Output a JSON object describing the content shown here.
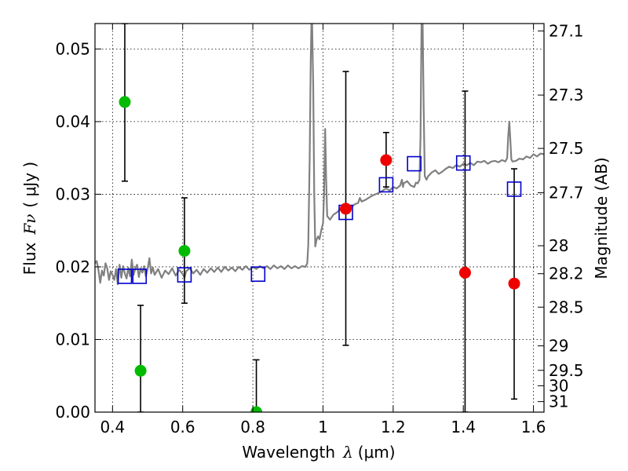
{
  "chart_data": {
    "type": "scatter",
    "title": "",
    "xlabel": "Wavelength  λ (μm)",
    "xlabel_prefix": "Wavelength",
    "xlabel_symbol": "λ",
    "xlabel_unit": "(μm)",
    "ylabel": "Flux  Fν ( μJy )",
    "ylabel_prefix": "Flux",
    "ylabel_symbol": "Fν",
    "ylabel_unit": "( μJy )",
    "ylabel_right": "Magnitude (AB)",
    "xlim": [
      0.35,
      1.63
    ],
    "ylim": [
      0.0,
      0.0535
    ],
    "grid": true,
    "x_ticks": [
      0.4,
      0.6,
      0.8,
      1.0,
      1.2,
      1.4,
      1.6
    ],
    "x_tick_labels": [
      "0.4",
      "0.6",
      "0.8",
      "1",
      "1.2",
      "1.4",
      "1.6"
    ],
    "y_ticks": [
      0.0,
      0.01,
      0.02,
      0.03,
      0.04,
      0.05
    ],
    "y_tick_labels": [
      "0.00",
      "0.01",
      "0.02",
      "0.03",
      "0.04",
      "0.05"
    ],
    "mag_ticks": [
      {
        "label": "27.1",
        "mag": 27.1
      },
      {
        "label": "27.3",
        "mag": 27.3
      },
      {
        "label": "27.5",
        "mag": 27.5
      },
      {
        "label": "27.7",
        "mag": 27.7
      },
      {
        "label": "28",
        "mag": 28.0
      },
      {
        "label": "28.2",
        "mag": 28.2
      },
      {
        "label": "28.5",
        "mag": 28.5
      },
      {
        "label": "29",
        "mag": 29.0
      },
      {
        "label": "29.5",
        "mag": 29.5
      },
      {
        "label": "30",
        "mag": 30.0
      },
      {
        "label": "31",
        "mag": 31.0
      }
    ],
    "series": [
      {
        "name": "model spectrum",
        "kind": "line",
        "color": "#808080",
        "points": [
          [
            0.35,
            0.0205
          ],
          [
            0.355,
            0.0208
          ],
          [
            0.36,
            0.0195
          ],
          [
            0.365,
            0.0178
          ],
          [
            0.37,
            0.0195
          ],
          [
            0.375,
            0.0188
          ],
          [
            0.38,
            0.0205
          ],
          [
            0.385,
            0.0198
          ],
          [
            0.39,
            0.0182
          ],
          [
            0.395,
            0.0194
          ],
          [
            0.4,
            0.0189
          ],
          [
            0.405,
            0.0182
          ],
          [
            0.41,
            0.0197
          ],
          [
            0.415,
            0.0176
          ],
          [
            0.42,
            0.0203
          ],
          [
            0.425,
            0.0185
          ],
          [
            0.43,
            0.0201
          ],
          [
            0.435,
            0.0191
          ],
          [
            0.44,
            0.0184
          ],
          [
            0.445,
            0.0199
          ],
          [
            0.45,
            0.0187
          ],
          [
            0.455,
            0.021
          ],
          [
            0.46,
            0.0189
          ],
          [
            0.465,
            0.0198
          ],
          [
            0.47,
            0.0203
          ],
          [
            0.475,
            0.0186
          ],
          [
            0.48,
            0.0198
          ],
          [
            0.485,
            0.0192
          ],
          [
            0.49,
            0.0201
          ],
          [
            0.495,
            0.0187
          ],
          [
            0.5,
            0.0197
          ],
          [
            0.505,
            0.0212
          ],
          [
            0.51,
            0.0191
          ],
          [
            0.515,
            0.0199
          ],
          [
            0.52,
            0.0189
          ],
          [
            0.53,
            0.0197
          ],
          [
            0.54,
            0.0185
          ],
          [
            0.55,
            0.0195
          ],
          [
            0.56,
            0.019
          ],
          [
            0.57,
            0.0198
          ],
          [
            0.58,
            0.0188
          ],
          [
            0.59,
            0.0196
          ],
          [
            0.6,
            0.019
          ],
          [
            0.605,
            0.0185
          ],
          [
            0.61,
            0.0194
          ],
          [
            0.62,
            0.0198
          ],
          [
            0.63,
            0.0191
          ],
          [
            0.64,
            0.0196
          ],
          [
            0.65,
            0.0189
          ],
          [
            0.66,
            0.0197
          ],
          [
            0.67,
            0.0192
          ],
          [
            0.68,
            0.0198
          ],
          [
            0.69,
            0.0193
          ],
          [
            0.7,
            0.0199
          ],
          [
            0.71,
            0.0193
          ],
          [
            0.72,
            0.02
          ],
          [
            0.73,
            0.0195
          ],
          [
            0.74,
            0.0199
          ],
          [
            0.75,
            0.0194
          ],
          [
            0.76,
            0.02
          ],
          [
            0.77,
            0.0196
          ],
          [
            0.78,
            0.0201
          ],
          [
            0.79,
            0.0196
          ],
          [
            0.8,
            0.02
          ],
          [
            0.81,
            0.0197
          ],
          [
            0.82,
            0.0201
          ],
          [
            0.83,
            0.0198
          ],
          [
            0.84,
            0.0201
          ],
          [
            0.85,
            0.0197
          ],
          [
            0.86,
            0.0202
          ],
          [
            0.87,
            0.0198
          ],
          [
            0.88,
            0.0201
          ],
          [
            0.89,
            0.0197
          ],
          [
            0.9,
            0.0202
          ],
          [
            0.91,
            0.0198
          ],
          [
            0.92,
            0.0201
          ],
          [
            0.93,
            0.0198
          ],
          [
            0.94,
            0.0201
          ],
          [
            0.95,
            0.02
          ],
          [
            0.955,
            0.0205
          ],
          [
            0.958,
            0.023
          ],
          [
            0.962,
            0.035
          ],
          [
            0.965,
            0.048
          ],
          [
            0.967,
            0.0535
          ],
          [
            0.969,
            0.0535
          ],
          [
            0.972,
            0.045
          ],
          [
            0.975,
            0.03
          ],
          [
            0.978,
            0.0228
          ],
          [
            0.982,
            0.0238
          ],
          [
            0.986,
            0.0242
          ],
          [
            0.99,
            0.0238
          ],
          [
            0.995,
            0.025
          ],
          [
            1.0,
            0.026
          ],
          [
            1.003,
            0.03
          ],
          [
            1.006,
            0.039
          ],
          [
            1.009,
            0.032
          ],
          [
            1.012,
            0.027
          ],
          [
            1.02,
            0.0265
          ],
          [
            1.03,
            0.0272
          ],
          [
            1.04,
            0.0275
          ],
          [
            1.05,
            0.028
          ],
          [
            1.055,
            0.0285
          ],
          [
            1.06,
            0.0278
          ],
          [
            1.065,
            0.028
          ],
          [
            1.07,
            0.0276
          ],
          [
            1.08,
            0.0282
          ],
          [
            1.09,
            0.0286
          ],
          [
            1.1,
            0.0288
          ],
          [
            1.105,
            0.0295
          ],
          [
            1.11,
            0.029
          ],
          [
            1.12,
            0.0292
          ],
          [
            1.13,
            0.0295
          ],
          [
            1.14,
            0.0298
          ],
          [
            1.15,
            0.03
          ],
          [
            1.16,
            0.0302
          ],
          [
            1.17,
            0.0305
          ],
          [
            1.18,
            0.0308
          ],
          [
            1.19,
            0.0305
          ],
          [
            1.2,
            0.031
          ],
          [
            1.21,
            0.0308
          ],
          [
            1.22,
            0.0312
          ],
          [
            1.225,
            0.032
          ],
          [
            1.228,
            0.031
          ],
          [
            1.23,
            0.0315
          ],
          [
            1.24,
            0.0318
          ],
          [
            1.25,
            0.0312
          ],
          [
            1.26,
            0.031
          ],
          [
            1.265,
            0.0316
          ],
          [
            1.27,
            0.0315
          ],
          [
            1.275,
            0.032
          ],
          [
            1.278,
            0.038
          ],
          [
            1.281,
            0.0535
          ],
          [
            1.284,
            0.0535
          ],
          [
            1.287,
            0.042
          ],
          [
            1.29,
            0.0325
          ],
          [
            1.295,
            0.032
          ],
          [
            1.3,
            0.0325
          ],
          [
            1.31,
            0.033
          ],
          [
            1.32,
            0.0333
          ],
          [
            1.33,
            0.0328
          ],
          [
            1.34,
            0.0331
          ],
          [
            1.35,
            0.0335
          ],
          [
            1.36,
            0.0338
          ],
          [
            1.37,
            0.0336
          ],
          [
            1.38,
            0.034
          ],
          [
            1.39,
            0.0338
          ],
          [
            1.4,
            0.0342
          ],
          [
            1.41,
            0.034
          ],
          [
            1.42,
            0.0343
          ],
          [
            1.43,
            0.034
          ],
          [
            1.44,
            0.0345
          ],
          [
            1.45,
            0.0344
          ],
          [
            1.46,
            0.0346
          ],
          [
            1.47,
            0.0342
          ],
          [
            1.48,
            0.0345
          ],
          [
            1.49,
            0.0346
          ],
          [
            1.5,
            0.0344
          ],
          [
            1.51,
            0.0347
          ],
          [
            1.52,
            0.0345
          ],
          [
            1.525,
            0.035
          ],
          [
            1.528,
            0.038
          ],
          [
            1.531,
            0.04
          ],
          [
            1.534,
            0.0375
          ],
          [
            1.537,
            0.0348
          ],
          [
            1.54,
            0.0345
          ],
          [
            1.55,
            0.0346
          ],
          [
            1.56,
            0.0349
          ],
          [
            1.57,
            0.0348
          ],
          [
            1.58,
            0.0352
          ],
          [
            1.59,
            0.035
          ],
          [
            1.6,
            0.0355
          ],
          [
            1.61,
            0.0352
          ],
          [
            1.62,
            0.0356
          ],
          [
            1.63,
            0.0355
          ]
        ]
      },
      {
        "name": "green photometry",
        "kind": "points",
        "color": "#00bb00",
        "points": [
          {
            "x": 0.435,
            "y": 0.0427,
            "ylo": 0.0318,
            "yhi": 0.0535
          },
          {
            "x": 0.48,
            "y": 0.0057,
            "ylo": 0.0,
            "yhi": 0.0147
          },
          {
            "x": 0.605,
            "y": 0.0222,
            "ylo": 0.015,
            "yhi": 0.0295
          },
          {
            "x": 0.81,
            "y": 0.0,
            "ylo": 0.0,
            "yhi": 0.0072
          }
        ]
      },
      {
        "name": "red photometry",
        "kind": "points",
        "color": "#ee0000",
        "points": [
          {
            "x": 1.065,
            "y": 0.028,
            "ylo": 0.0092,
            "yhi": 0.0469
          },
          {
            "x": 1.18,
            "y": 0.0347,
            "ylo": 0.031,
            "yhi": 0.0385
          },
          {
            "x": 1.405,
            "y": 0.0192,
            "ylo": 0.0,
            "yhi": 0.0442
          },
          {
            "x": 1.545,
            "y": 0.0177,
            "ylo": 0.0018,
            "yhi": 0.0335
          }
        ]
      },
      {
        "name": "model band flux",
        "kind": "squares",
        "color": "#0000cc",
        "points": [
          {
            "x": 0.435,
            "y": 0.0187
          },
          {
            "x": 0.477,
            "y": 0.0187
          },
          {
            "x": 0.605,
            "y": 0.0189
          },
          {
            "x": 0.815,
            "y": 0.019
          },
          {
            "x": 1.065,
            "y": 0.0275
          },
          {
            "x": 1.18,
            "y": 0.0313
          },
          {
            "x": 1.26,
            "y": 0.0342
          },
          {
            "x": 1.4,
            "y": 0.0343
          },
          {
            "x": 1.545,
            "y": 0.0307
          }
        ]
      }
    ]
  }
}
